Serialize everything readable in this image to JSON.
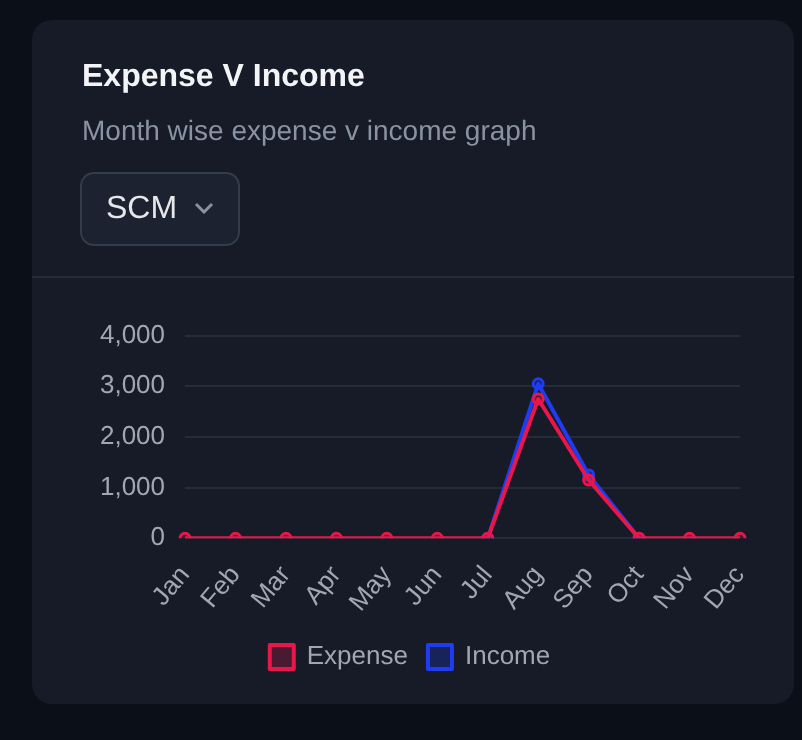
{
  "chart_data": {
    "type": "line",
    "title": "Expense V Income",
    "subtitle": "Month wise expense v income graph",
    "annotations": [
      "SCM"
    ],
    "categories": [
      "Jan",
      "Feb",
      "Mar",
      "Apr",
      "May",
      "Jun",
      "Jul",
      "Aug",
      "Sep",
      "Oct",
      "Nov",
      "Dec"
    ],
    "series": [
      {
        "name": "Expense",
        "color": "#e8174a",
        "values": [
          0,
          0,
          0,
          0,
          0,
          0,
          0,
          2750,
          1150,
          0,
          0,
          0
        ]
      },
      {
        "name": "Income",
        "color": "#1f3cf0",
        "values": [
          null,
          null,
          null,
          null,
          null,
          null,
          0,
          3050,
          1250,
          0,
          null,
          null
        ]
      }
    ],
    "ylim": [
      0,
      4000
    ],
    "yticks": [
      {
        "value": 0,
        "label": "0"
      },
      {
        "value": 1000,
        "label": "1,000"
      },
      {
        "value": 2000,
        "label": "2,000"
      },
      {
        "value": 3000,
        "label": "3,000"
      },
      {
        "value": 4000,
        "label": "4,000"
      }
    ],
    "grid": "y",
    "legend": "bottom",
    "marker": "circle",
    "line_style": "solid"
  }
}
